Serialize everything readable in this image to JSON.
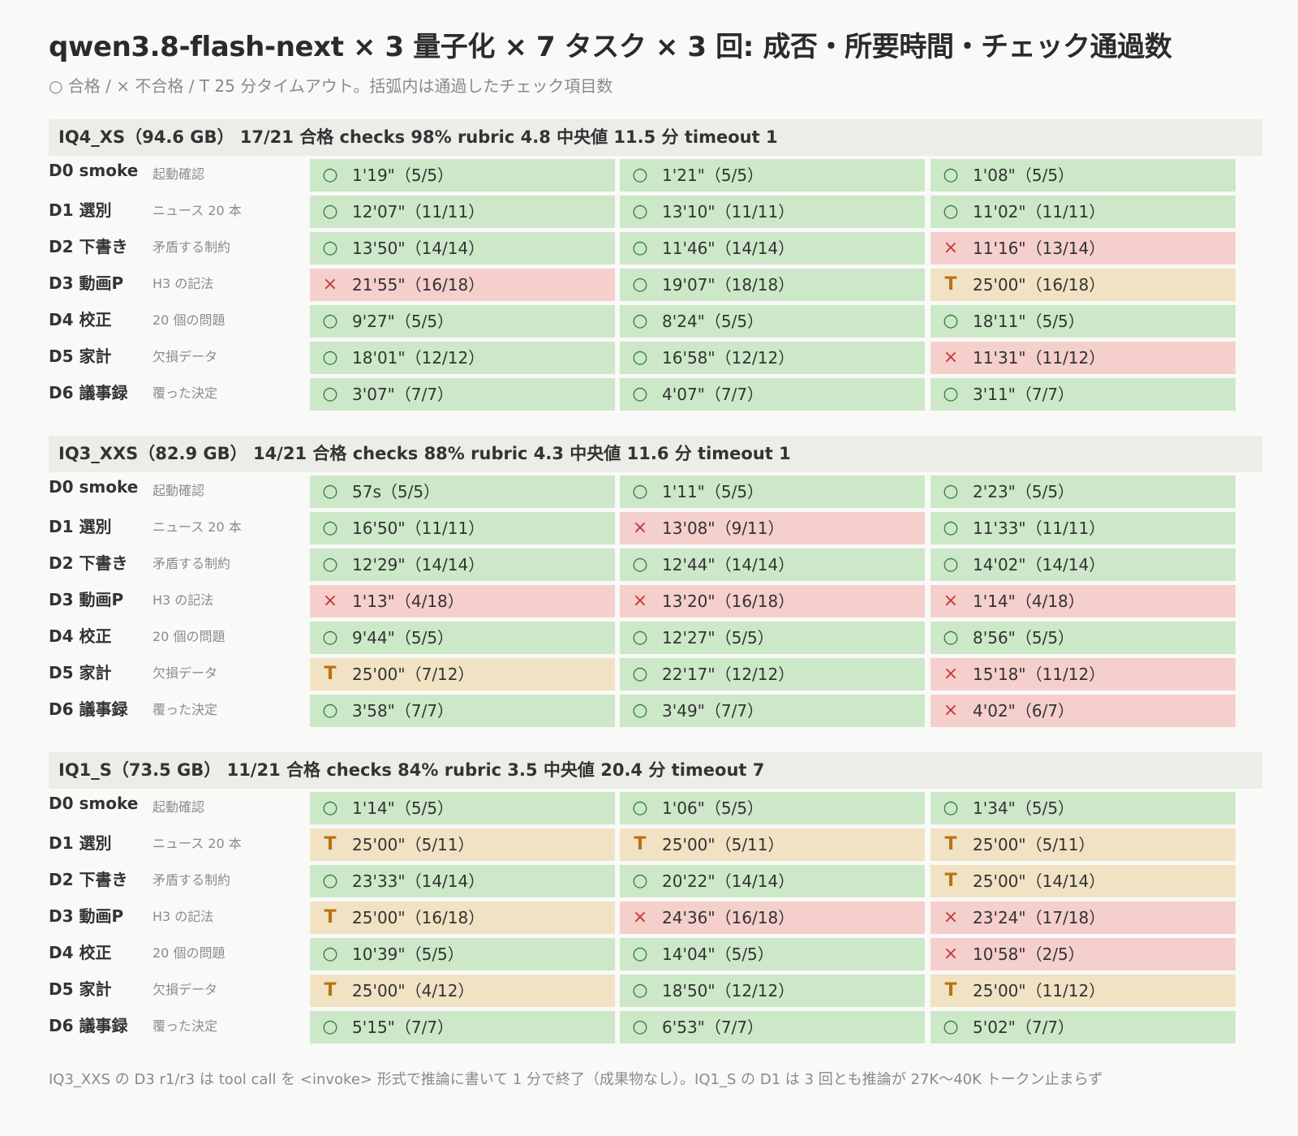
{
  "header": {
    "title": "qwen3.8-flash-next × 3 量子化 × 7 タスク × 3 回: 成否・所要時間・チェック通過数",
    "subtitle": "○ 合格 / × 不合格 / T 25 分タイムアウト。括弧内は通過したチェック項目数"
  },
  "footnote": "IQ3_XXS の D3 r1/r3 は tool call を <invoke> 形式で推論に書いて 1 分で終了（成果物なし）。IQ1_S の D1 は 3 回とも推論が 27K〜40K トークン止まらず",
  "status_colors": {
    "pass": "#cce8c8",
    "fail": "#f5cfcc",
    "timeout": "#f1e2c3"
  },
  "status_marks": {
    "pass": "○",
    "fail": "×",
    "timeout": "T"
  },
  "chart_data": {
    "type": "table",
    "tasks": [
      {
        "id": "D0 smoke",
        "desc": "起動確認"
      },
      {
        "id": "D1 選別",
        "desc": "ニュース 20 本"
      },
      {
        "id": "D2 下書き",
        "desc": "矛盾する制約"
      },
      {
        "id": "D3 動画P",
        "desc": "H3 の記法"
      },
      {
        "id": "D4 校正",
        "desc": "20 個の問題"
      },
      {
        "id": "D5 家計",
        "desc": "欠損データ"
      },
      {
        "id": "D6 議事録",
        "desc": "覆った決定"
      }
    ],
    "quants": [
      {
        "summary": "IQ4_XS（94.6 GB） 17/21 合格  checks 98%  rubric 4.8  中央値 11.5 分  timeout 1",
        "rows": [
          [
            {
              "s": "pass",
              "t": "1'19\"（5/5）"
            },
            {
              "s": "pass",
              "t": "1'21\"（5/5）"
            },
            {
              "s": "pass",
              "t": "1'08\"（5/5）"
            }
          ],
          [
            {
              "s": "pass",
              "t": "12'07\"（11/11）"
            },
            {
              "s": "pass",
              "t": "13'10\"（11/11）"
            },
            {
              "s": "pass",
              "t": "11'02\"（11/11）"
            }
          ],
          [
            {
              "s": "pass",
              "t": "13'50\"（14/14）"
            },
            {
              "s": "pass",
              "t": "11'46\"（14/14）"
            },
            {
              "s": "fail",
              "t": "11'16\"（13/14）"
            }
          ],
          [
            {
              "s": "fail",
              "t": "21'55\"（16/18）"
            },
            {
              "s": "pass",
              "t": "19'07\"（18/18）"
            },
            {
              "s": "timeout",
              "t": "25'00\"（16/18）"
            }
          ],
          [
            {
              "s": "pass",
              "t": "9'27\"（5/5）"
            },
            {
              "s": "pass",
              "t": "8'24\"（5/5）"
            },
            {
              "s": "pass",
              "t": "18'11\"（5/5）"
            }
          ],
          [
            {
              "s": "pass",
              "t": "18'01\"（12/12）"
            },
            {
              "s": "pass",
              "t": "16'58\"（12/12）"
            },
            {
              "s": "fail",
              "t": "11'31\"（11/12）"
            }
          ],
          [
            {
              "s": "pass",
              "t": "3'07\"（7/7）"
            },
            {
              "s": "pass",
              "t": "4'07\"（7/7）"
            },
            {
              "s": "pass",
              "t": "3'11\"（7/7）"
            }
          ]
        ]
      },
      {
        "summary": "IQ3_XXS（82.9 GB） 14/21 合格  checks 88%  rubric 4.3  中央値 11.6 分  timeout 1",
        "rows": [
          [
            {
              "s": "pass",
              "t": "57s（5/5）"
            },
            {
              "s": "pass",
              "t": "1'11\"（5/5）"
            },
            {
              "s": "pass",
              "t": "2'23\"（5/5）"
            }
          ],
          [
            {
              "s": "pass",
              "t": "16'50\"（11/11）"
            },
            {
              "s": "fail",
              "t": "13'08\"（9/11）"
            },
            {
              "s": "pass",
              "t": "11'33\"（11/11）"
            }
          ],
          [
            {
              "s": "pass",
              "t": "12'29\"（14/14）"
            },
            {
              "s": "pass",
              "t": "12'44\"（14/14）"
            },
            {
              "s": "pass",
              "t": "14'02\"（14/14）"
            }
          ],
          [
            {
              "s": "fail",
              "t": "1'13\"（4/18）"
            },
            {
              "s": "fail",
              "t": "13'20\"（16/18）"
            },
            {
              "s": "fail",
              "t": "1'14\"（4/18）"
            }
          ],
          [
            {
              "s": "pass",
              "t": "9'44\"（5/5）"
            },
            {
              "s": "pass",
              "t": "12'27\"（5/5）"
            },
            {
              "s": "pass",
              "t": "8'56\"（5/5）"
            }
          ],
          [
            {
              "s": "timeout",
              "t": "25'00\"（7/12）"
            },
            {
              "s": "pass",
              "t": "22'17\"（12/12）"
            },
            {
              "s": "fail",
              "t": "15'18\"（11/12）"
            }
          ],
          [
            {
              "s": "pass",
              "t": "3'58\"（7/7）"
            },
            {
              "s": "pass",
              "t": "3'49\"（7/7）"
            },
            {
              "s": "fail",
              "t": "4'02\"（6/7）"
            }
          ]
        ]
      },
      {
        "summary": "IQ1_S（73.5 GB） 11/21 合格  checks 84%  rubric 3.5  中央値 20.4 分  timeout 7",
        "rows": [
          [
            {
              "s": "pass",
              "t": "1'14\"（5/5）"
            },
            {
              "s": "pass",
              "t": "1'06\"（5/5）"
            },
            {
              "s": "pass",
              "t": "1'34\"（5/5）"
            }
          ],
          [
            {
              "s": "timeout",
              "t": "25'00\"（5/11）"
            },
            {
              "s": "timeout",
              "t": "25'00\"（5/11）"
            },
            {
              "s": "timeout",
              "t": "25'00\"（5/11）"
            }
          ],
          [
            {
              "s": "pass",
              "t": "23'33\"（14/14）"
            },
            {
              "s": "pass",
              "t": "20'22\"（14/14）"
            },
            {
              "s": "timeout",
              "t": "25'00\"（14/14）"
            }
          ],
          [
            {
              "s": "timeout",
              "t": "25'00\"（16/18）"
            },
            {
              "s": "fail",
              "t": "24'36\"（16/18）"
            },
            {
              "s": "fail",
              "t": "23'24\"（17/18）"
            }
          ],
          [
            {
              "s": "pass",
              "t": "10'39\"（5/5）"
            },
            {
              "s": "pass",
              "t": "14'04\"（5/5）"
            },
            {
              "s": "fail",
              "t": "10'58\"（2/5）"
            }
          ],
          [
            {
              "s": "timeout",
              "t": "25'00\"（4/12）"
            },
            {
              "s": "pass",
              "t": "18'50\"（12/12）"
            },
            {
              "s": "timeout",
              "t": "25'00\"（11/12）"
            }
          ],
          [
            {
              "s": "pass",
              "t": "5'15\"（7/7）"
            },
            {
              "s": "pass",
              "t": "6'53\"（7/7）"
            },
            {
              "s": "pass",
              "t": "5'02\"（7/7）"
            }
          ]
        ]
      }
    ]
  }
}
